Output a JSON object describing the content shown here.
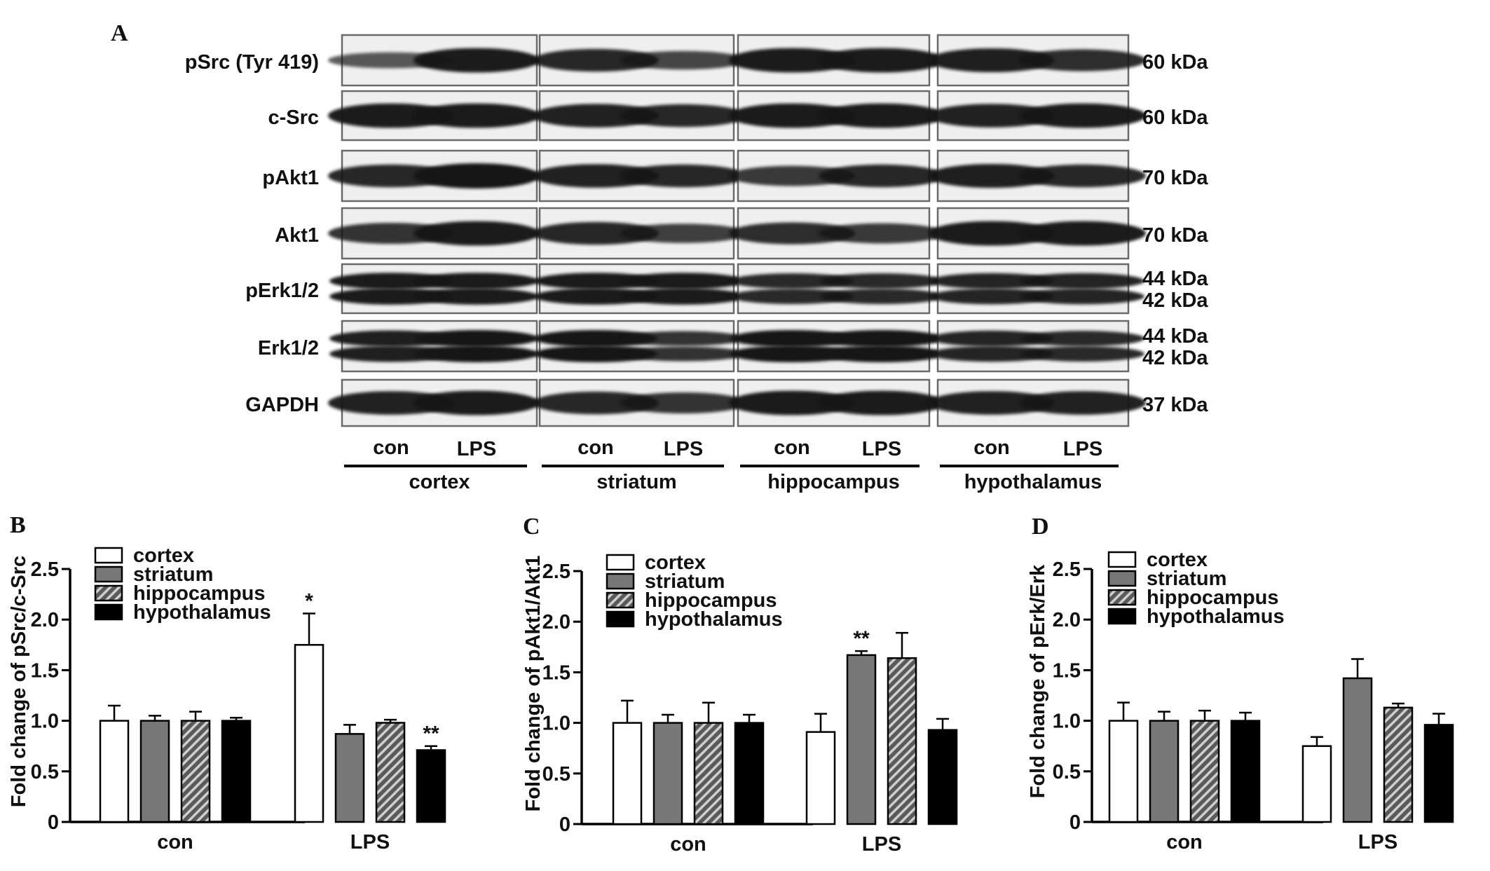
{
  "panel_a": {
    "letter": "A",
    "rows": [
      {
        "label": "pSrc (Tyr 419)",
        "size": [
          "60  kDa"
        ]
      },
      {
        "label": "c-Src",
        "size": [
          "60  kDa"
        ]
      },
      {
        "label": "pAkt1",
        "size": [
          "70  kDa"
        ]
      },
      {
        "label": "Akt1",
        "size": [
          "70  kDa"
        ]
      },
      {
        "label": "pErk1/2",
        "size": [
          "44  kDa",
          "42  kDa"
        ]
      },
      {
        "label": "Erk1/2",
        "size": [
          "44  kDa",
          "42  kDa"
        ]
      },
      {
        "label": "GAPDH",
        "size": [
          "37  kDa"
        ]
      }
    ],
    "lane_labels": [
      "con",
      "LPS"
    ],
    "regions": [
      "cortex",
      "striatum",
      "hippocampus",
      "hypothalamus"
    ]
  },
  "colors": {
    "cortex": "#ffffff",
    "striatum": "#777777",
    "hippocampus": "hatched",
    "hypothalamus": "#000000",
    "blot_background": "#efefef",
    "band": "#161616"
  },
  "chart_data": [
    {
      "type": "bar",
      "panel": "B",
      "ylabel": "Fold change of pSrc/c-Src",
      "categories": [
        "con",
        "LPS"
      ],
      "ylim": [
        0,
        2.5
      ],
      "yticks": [
        "0",
        "0.5",
        "1.0",
        "1.5",
        "2.0",
        "2.5"
      ],
      "series": [
        {
          "name": "cortex",
          "values": [
            1.0,
            1.75
          ],
          "errors": [
            0.15,
            0.31
          ],
          "sig": [
            "",
            "*"
          ]
        },
        {
          "name": "striatum",
          "values": [
            1.0,
            0.87
          ],
          "errors": [
            0.05,
            0.09
          ],
          "sig": [
            "",
            ""
          ]
        },
        {
          "name": "hippocampus",
          "values": [
            1.0,
            0.98
          ],
          "errors": [
            0.09,
            0.03
          ],
          "sig": [
            "",
            ""
          ]
        },
        {
          "name": "hypothalamus",
          "values": [
            1.0,
            0.71
          ],
          "errors": [
            0.03,
            0.04
          ],
          "sig": [
            "",
            "**"
          ]
        }
      ],
      "legend": "top-left"
    },
    {
      "type": "bar",
      "panel": "C",
      "ylabel": "Fold change of pAkt1/Akt1",
      "categories": [
        "con",
        "LPS"
      ],
      "ylim": [
        0,
        2.5
      ],
      "yticks": [
        "0",
        "0.5",
        "1.0",
        "1.5",
        "2.0",
        "2.5"
      ],
      "series": [
        {
          "name": "cortex",
          "values": [
            1.0,
            0.91
          ],
          "errors": [
            0.22,
            0.18
          ],
          "sig": [
            "",
            ""
          ]
        },
        {
          "name": "striatum",
          "values": [
            1.0,
            1.67
          ],
          "errors": [
            0.08,
            0.04
          ],
          "sig": [
            "",
            "**"
          ]
        },
        {
          "name": "hippocampus",
          "values": [
            1.0,
            1.64
          ],
          "errors": [
            0.2,
            0.25
          ],
          "sig": [
            "",
            ""
          ]
        },
        {
          "name": "hypothalamus",
          "values": [
            1.0,
            0.93
          ],
          "errors": [
            0.08,
            0.11
          ],
          "sig": [
            "",
            ""
          ]
        }
      ],
      "legend": "top-left"
    },
    {
      "type": "bar",
      "panel": "D",
      "ylabel": "Fold change of pErk/Erk",
      "categories": [
        "con",
        "LPS"
      ],
      "ylim": [
        0,
        2.5
      ],
      "yticks": [
        "0",
        "0.5",
        "1.0",
        "1.5",
        "2.0",
        "2.5"
      ],
      "series": [
        {
          "name": "cortex",
          "values": [
            1.0,
            0.75
          ],
          "errors": [
            0.18,
            0.09
          ],
          "sig": [
            "",
            ""
          ]
        },
        {
          "name": "striatum",
          "values": [
            1.0,
            1.42
          ],
          "errors": [
            0.09,
            0.19
          ],
          "sig": [
            "",
            ""
          ]
        },
        {
          "name": "hippocampus",
          "values": [
            1.0,
            1.13
          ],
          "errors": [
            0.1,
            0.04
          ],
          "sig": [
            "",
            ""
          ]
        },
        {
          "name": "hypothalamus",
          "values": [
            1.0,
            0.96
          ],
          "errors": [
            0.08,
            0.11
          ],
          "sig": [
            "",
            ""
          ]
        }
      ],
      "legend": "top-left"
    }
  ]
}
